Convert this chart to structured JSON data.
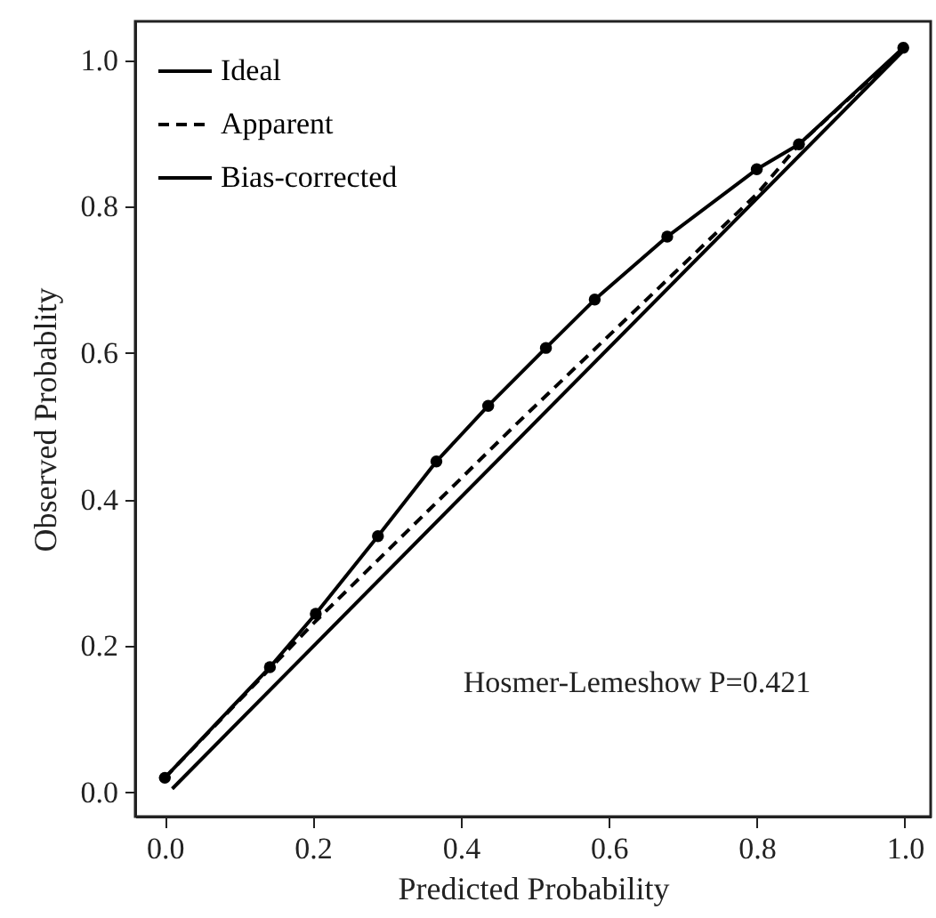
{
  "chart_data": {
    "type": "line",
    "xlabel": "Predicted Probability",
    "ylabel": "Observed Probablity",
    "xlim": [
      -0.04,
      1.035
    ],
    "ylim": [
      -0.033,
      1.053
    ],
    "xticks": [
      {
        "value": 0,
        "label": "0.0"
      },
      0.2,
      0.4,
      0.6,
      0.8,
      {
        "value": 1,
        "label": "1.0"
      }
    ],
    "yticks": [
      {
        "value": 0,
        "label": "0.0"
      },
      0.2,
      0.4,
      0.6,
      0.8,
      {
        "value": 1,
        "label": "1.0"
      }
    ],
    "grid": false,
    "legend": "top left",
    "annotations": [
      "Hosmer-Lemeshow P=0.421"
    ],
    "series": [
      {
        "name": "Ideal",
        "color": "#000000",
        "line_style": "solid",
        "marker": "none",
        "x": [
          0.01,
          1.0
        ],
        "values": [
          0.005,
          1.015
        ]
      },
      {
        "name": "Apparent",
        "color": "#000000",
        "line_style": "dashed",
        "marker": "none",
        "x": [
          0.0,
          0.2,
          0.474,
          0.8,
          0.857,
          1.0
        ],
        "values": [
          0.02,
          0.23,
          0.502,
          0.817,
          0.885,
          1.017
        ]
      },
      {
        "name": "Bias-corrected",
        "color": "#000000",
        "line_style": "solid",
        "marker": "circle",
        "x": [
          0.0,
          0.142,
          0.204,
          0.288,
          0.367,
          0.437,
          0.515,
          0.581,
          0.679,
          0.8,
          0.857,
          0.998
        ],
        "values": [
          0.02,
          0.171,
          0.244,
          0.35,
          0.452,
          0.528,
          0.607,
          0.673,
          0.759,
          0.851,
          0.885,
          1.017
        ]
      }
    ]
  }
}
